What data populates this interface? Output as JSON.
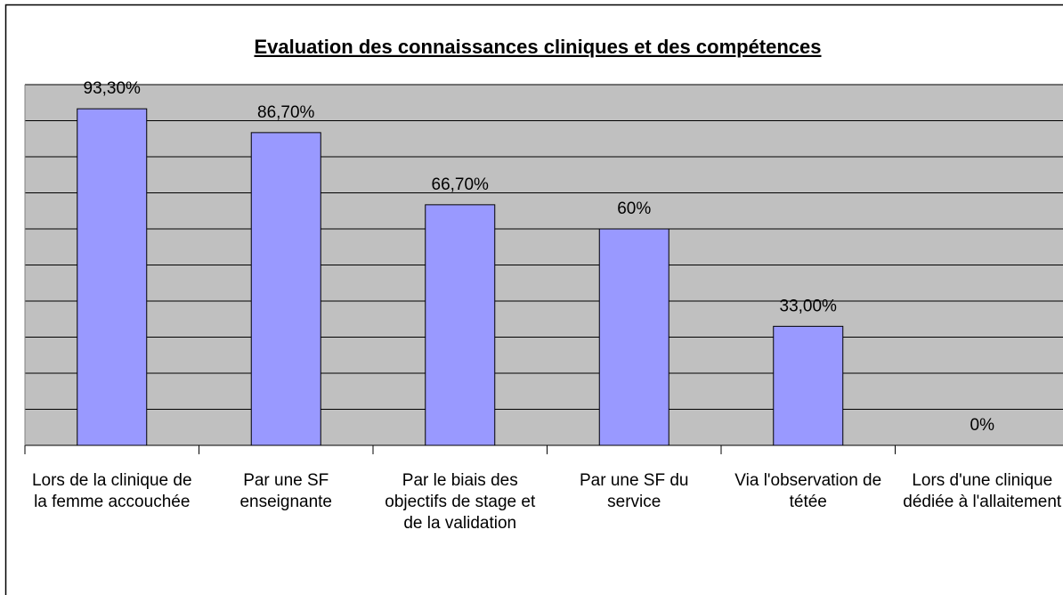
{
  "chart_data": {
    "type": "bar",
    "title": "Evaluation des connaissances cliniques et des compétences",
    "categories": [
      "Lors de la clinique de la femme accouchée",
      "Par une SF enseignante",
      "Par le biais des objectifs de stage et de la validation",
      "Par une SF du service",
      "Via l'observation de tétée",
      "Lors d'une clinique dédiée à l'allaitement"
    ],
    "values": [
      93.3,
      86.7,
      66.7,
      60,
      33,
      0
    ],
    "value_labels": [
      "93,30%",
      "86,70%",
      "66,70%",
      "60%",
      "33,00%",
      "0%"
    ],
    "color": "#9999ff",
    "ylim": [
      0,
      100
    ],
    "yticks": [
      0,
      10,
      20,
      30,
      40,
      50,
      60,
      70,
      80,
      90,
      100
    ],
    "grid": true
  }
}
